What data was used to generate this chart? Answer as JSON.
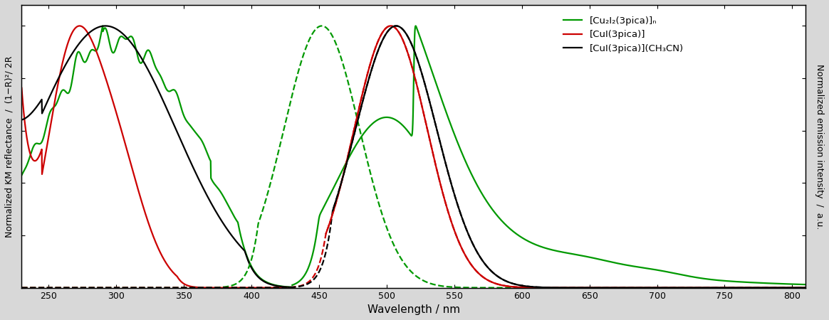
{
  "xlabel": "Wavelength / nm",
  "ylabel_left": "Normalized KM reflectance  /  (1−R)²/ 2R",
  "ylabel_right": "Normalized emission intensity  /  a.u.",
  "xlim": [
    230,
    810
  ],
  "ylim": [
    0,
    1.08
  ],
  "xticks": [
    250,
    300,
    350,
    400,
    450,
    500,
    550,
    600,
    650,
    700,
    750,
    800
  ],
  "legend_labels": [
    "[Cu₂I₂(3pica)]ₙ",
    "[CuI(3pica)]",
    "[CuI(3pica)](CH₃CN)"
  ],
  "colors": {
    "green": "#009900",
    "red": "#cc0000",
    "black": "#000000"
  },
  "figsize": [
    11.64,
    4.5
  ],
  "dpi": 100,
  "lw": 1.6,
  "bg_outer": "#d8d8d8",
  "bg_inner": "#ffffff"
}
